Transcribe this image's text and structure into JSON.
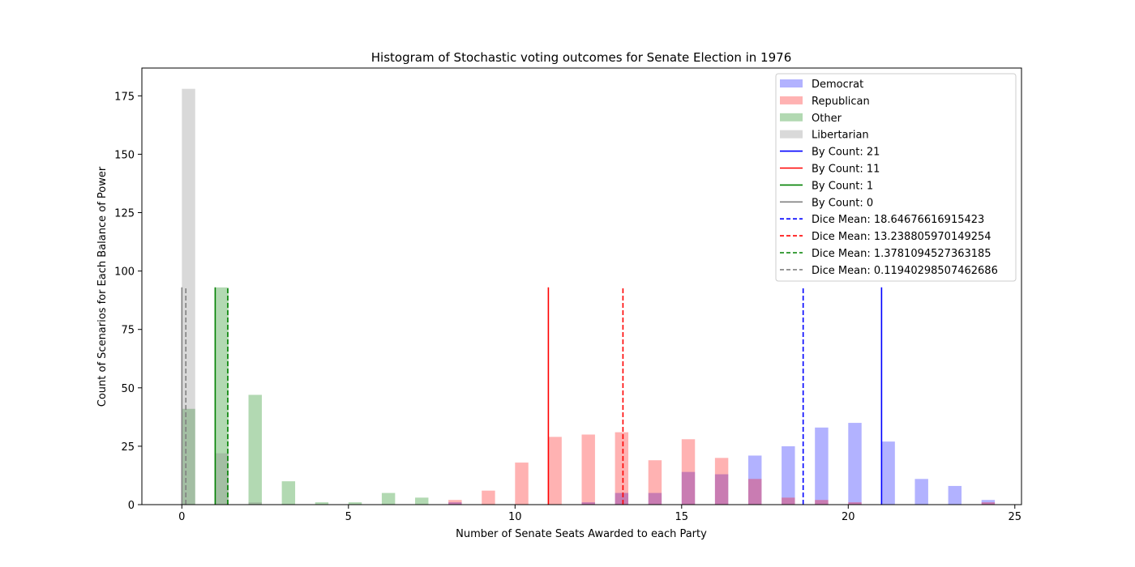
{
  "chart_data": {
    "type": "bar",
    "title": "Histogram of Stochastic voting outcomes for Senate Election in 1976",
    "xlabel": "Number of Senate Seats Awarded to each Party",
    "ylabel": "Count of Scenarios for Each Balance of Power",
    "xlim": [
      -1.2,
      25.2
    ],
    "ylim": [
      0,
      186.9
    ],
    "xticks": [
      0,
      5,
      10,
      15,
      20,
      25
    ],
    "yticks": [
      0,
      25,
      50,
      75,
      100,
      125,
      150,
      175
    ],
    "bin_width": 0.4,
    "series": [
      {
        "name": "Democrat",
        "color": "#0000ff",
        "alpha": 0.3,
        "bins": [
          {
            "x": 8.2,
            "y": 1
          },
          {
            "x": 12.2,
            "y": 1
          },
          {
            "x": 13.2,
            "y": 5
          },
          {
            "x": 14.2,
            "y": 5
          },
          {
            "x": 15.2,
            "y": 14
          },
          {
            "x": 16.2,
            "y": 13
          },
          {
            "x": 17.2,
            "y": 21
          },
          {
            "x": 18.2,
            "y": 25
          },
          {
            "x": 19.2,
            "y": 33
          },
          {
            "x": 20.2,
            "y": 35
          },
          {
            "x": 21.2,
            "y": 27
          },
          {
            "x": 22.2,
            "y": 11
          },
          {
            "x": 23.2,
            "y": 8
          },
          {
            "x": 24.2,
            "y": 2
          }
        ]
      },
      {
        "name": "Republican",
        "color": "#ff0000",
        "alpha": 0.3,
        "bins": [
          {
            "x": 8.2,
            "y": 2
          },
          {
            "x": 9.2,
            "y": 6
          },
          {
            "x": 10.2,
            "y": 18
          },
          {
            "x": 11.2,
            "y": 29
          },
          {
            "x": 12.2,
            "y": 30
          },
          {
            "x": 13.2,
            "y": 31
          },
          {
            "x": 14.2,
            "y": 19
          },
          {
            "x": 15.2,
            "y": 28
          },
          {
            "x": 16.2,
            "y": 20
          },
          {
            "x": 17.2,
            "y": 11
          },
          {
            "x": 18.2,
            "y": 3
          },
          {
            "x": 19.2,
            "y": 2
          },
          {
            "x": 20.2,
            "y": 1
          },
          {
            "x": 24.2,
            "y": 1
          }
        ]
      },
      {
        "name": "Other",
        "color": "#008000",
        "alpha": 0.3,
        "bins": [
          {
            "x": 0.2,
            "y": 41
          },
          {
            "x": 1.2,
            "y": 93
          },
          {
            "x": 2.2,
            "y": 47
          },
          {
            "x": 3.2,
            "y": 10
          },
          {
            "x": 4.2,
            "y": 1
          },
          {
            "x": 5.2,
            "y": 1
          },
          {
            "x": 6.2,
            "y": 5
          },
          {
            "x": 7.2,
            "y": 3
          }
        ]
      },
      {
        "name": "Libertarian",
        "color": "#808080",
        "alpha": 0.3,
        "bins": [
          {
            "x": 0.2,
            "y": 178
          },
          {
            "x": 1.2,
            "y": 22
          },
          {
            "x": 2.2,
            "y": 1
          }
        ]
      }
    ],
    "vlines": [
      {
        "label": "By Count: 21",
        "x": 21,
        "color": "#0000ff",
        "dash": false,
        "ymax": 93
      },
      {
        "label": "By Count: 11",
        "x": 11,
        "color": "#ff0000",
        "dash": false,
        "ymax": 93
      },
      {
        "label": "By Count: 1",
        "x": 1,
        "color": "#008000",
        "dash": false,
        "ymax": 93
      },
      {
        "label": "By Count: 0",
        "x": 0,
        "color": "#808080",
        "dash": false,
        "ymax": 93
      },
      {
        "label": "Dice Mean: 18.64676616915423",
        "x": 18.64676616915423,
        "color": "#0000ff",
        "dash": true,
        "ymax": 93
      },
      {
        "label": "Dice Mean: 13.238805970149254",
        "x": 13.238805970149254,
        "color": "#ff0000",
        "dash": true,
        "ymax": 93
      },
      {
        "label": "Dice Mean: 1.3781094527363185",
        "x": 1.3781094527363185,
        "color": "#008000",
        "dash": true,
        "ymax": 93
      },
      {
        "label": "Dice Mean: 0.11940298507462686",
        "x": 0.11940298507462686,
        "color": "#808080",
        "dash": true,
        "ymax": 93
      }
    ],
    "legend_position": "top-right"
  }
}
